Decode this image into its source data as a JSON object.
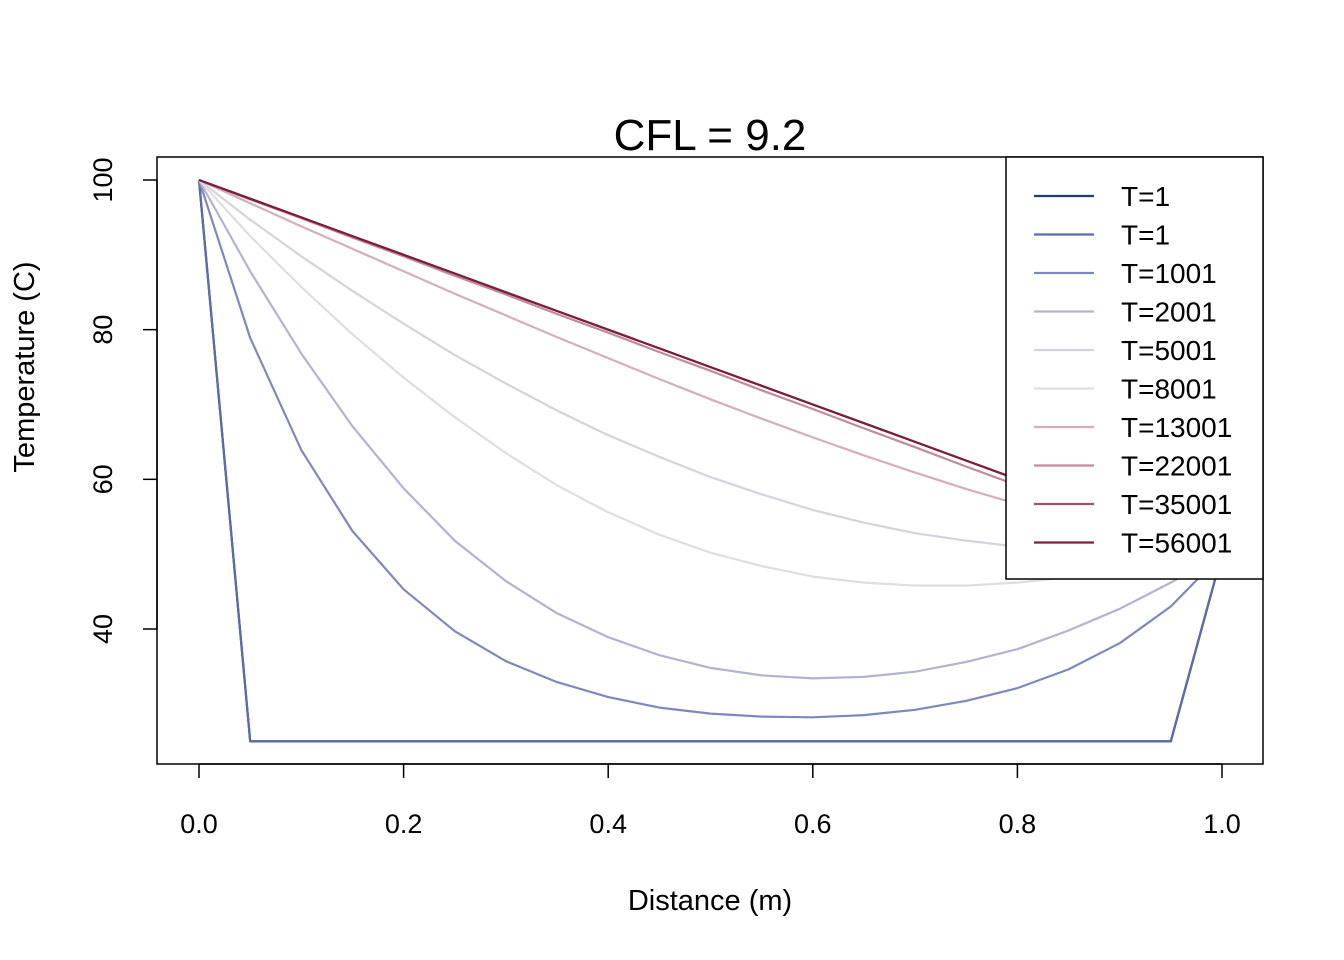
{
  "chart_data": {
    "type": "line",
    "title": "CFL = 9.2",
    "xlabel": "Distance (m)",
    "ylabel": "Temperature (C)",
    "xlim": [
      0.0,
      1.0
    ],
    "ylim": [
      25,
      100
    ],
    "xticks": [
      "0.0",
      "0.2",
      "0.4",
      "0.6",
      "0.8",
      "1.0"
    ],
    "yticks": [
      "40",
      "60",
      "80",
      "100"
    ],
    "legend_position": "top-right",
    "grid": false,
    "x": [
      0.0,
      0.05,
      0.1,
      0.15,
      0.2,
      0.25,
      0.3,
      0.35,
      0.4,
      0.45,
      0.5,
      0.55,
      0.6,
      0.65,
      0.7,
      0.75,
      0.8,
      0.85,
      0.9,
      0.95,
      1.0
    ],
    "series": [
      {
        "name": "T=1",
        "color": "#1f3a7a",
        "values": [
          100,
          25,
          25,
          25,
          25,
          25,
          25,
          25,
          25,
          25,
          25,
          25,
          25,
          25,
          25,
          25,
          25,
          25,
          25,
          25,
          50
        ]
      },
      {
        "name": "T=1",
        "color": "#5b6aa8",
        "values": [
          100,
          25,
          25,
          25,
          25,
          25,
          25,
          25,
          25,
          25,
          25,
          25,
          25,
          25,
          25,
          25,
          25,
          25,
          25,
          25,
          50
        ]
      },
      {
        "name": "T=1001",
        "color": "#7f88bc",
        "values": [
          100,
          78.9,
          63.9,
          53.1,
          45.3,
          39.7,
          35.7,
          32.9,
          30.9,
          29.5,
          28.7,
          28.3,
          28.2,
          28.5,
          29.2,
          30.4,
          32.1,
          34.6,
          38.1,
          43.0,
          50
        ]
      },
      {
        "name": "T=2001",
        "color": "#b2b3cf",
        "values": [
          100,
          87.8,
          76.8,
          67.1,
          58.8,
          51.8,
          46.4,
          42.1,
          38.9,
          36.5,
          34.8,
          33.8,
          33.4,
          33.6,
          34.3,
          35.6,
          37.3,
          39.8,
          42.7,
          46.2,
          50
        ]
      },
      {
        "name": "T=5001",
        "color": "#d4d4dc",
        "values": [
          100,
          94.7,
          89.8,
          85.2,
          80.8,
          76.6,
          72.8,
          69.2,
          65.9,
          63.0,
          60.3,
          58.0,
          55.9,
          54.2,
          52.8,
          51.8,
          51.0,
          50.5,
          50.2,
          50.1,
          50
        ]
      },
      {
        "name": "T=8001",
        "color": "#dedede",
        "values": [
          100,
          92.5,
          85.7,
          79.4,
          73.6,
          68.3,
          63.5,
          59.2,
          55.6,
          52.6,
          50.2,
          48.4,
          47.0,
          46.2,
          45.8,
          45.8,
          46.2,
          46.9,
          47.8,
          48.9,
          50
        ]
      },
      {
        "name": "T=13001",
        "color": "#d2afbb",
        "values": [
          100,
          96.9,
          93.8,
          90.8,
          87.8,
          84.8,
          81.9,
          79.0,
          76.2,
          73.4,
          70.7,
          68.1,
          65.6,
          63.2,
          60.9,
          58.7,
          56.7,
          54.9,
          53.1,
          51.5,
          50
        ]
      },
      {
        "name": "T=22001",
        "color": "#c18b9c",
        "values": [
          100,
          97.4,
          94.9,
          92.3,
          89.8,
          87.2,
          84.7,
          82.1,
          79.6,
          77.0,
          74.5,
          71.9,
          69.4,
          66.8,
          64.3,
          61.7,
          59.2,
          56.6,
          54.1,
          51.5,
          50
        ]
      },
      {
        "name": "T=35001",
        "color": "#9d5368",
        "values": [
          100,
          97.5,
          95.0,
          92.5,
          90.0,
          87.5,
          85.0,
          82.5,
          80.0,
          77.5,
          75.0,
          72.5,
          70.0,
          67.5,
          65.0,
          62.5,
          60.0,
          57.5,
          55.0,
          52.5,
          50
        ]
      },
      {
        "name": "T=56001",
        "color": "#7a1e3e",
        "values": [
          100,
          97.5,
          95.0,
          92.5,
          90.0,
          87.5,
          85.0,
          82.5,
          80.0,
          77.5,
          75.0,
          72.5,
          70.0,
          67.5,
          65.0,
          62.5,
          60.0,
          57.5,
          55.0,
          52.5,
          50
        ]
      }
    ]
  }
}
